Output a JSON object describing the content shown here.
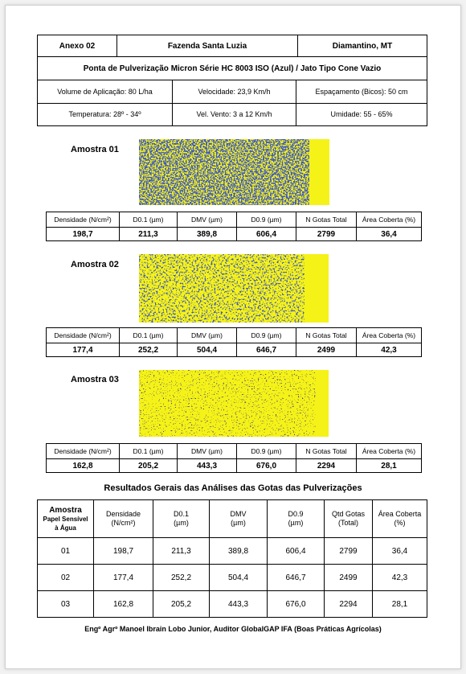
{
  "header": {
    "annex": "Anexo 02",
    "farm": "Fazenda Santa Luzia",
    "location": "Diamantino, MT",
    "nozzle": "Ponta de Pulverização Micron Série HC 8003 ISO (Azul) / Jato Tipo Cone Vazio",
    "application_volume": "Volume de Aplicação:  80 L/ha",
    "speed": "Velocidade: 23,9 Km/h",
    "spacing": "Espaçamento (Bicos): 50 cm",
    "temperature": "Temperatura: 28º - 34º",
    "wind": "Vel. Vento: 3 a 12 Km/h",
    "humidity": "Umidade: 55 - 65%"
  },
  "samples": [
    {
      "label": "Amostra 01",
      "columns": [
        "Densidade (N/cm²)",
        "D0.1 (µm)",
        "DMV (µm)",
        "D0.9 (µm)",
        "N Gotas Total",
        "Área Coberta  (%)"
      ],
      "values": [
        "198,7",
        "211,3",
        "389,8",
        "606,4",
        "2799",
        "36,4"
      ]
    },
    {
      "label": "Amostra 02",
      "columns": [
        "Densidade (N/cm²)",
        "D0.1 (µm)",
        "DMV (µm)",
        "D0.9 (µm)",
        "N Gotas Total",
        "Área Coberta  (%)"
      ],
      "values": [
        "177,4",
        "252,2",
        "504,4",
        "646,7",
        "2499",
        "42,3"
      ]
    },
    {
      "label": "Amostra 03",
      "columns": [
        "Densidade (N/cm²)",
        "D0.1 (µm)",
        "DMV (µm)",
        "D0.9 (µm)",
        "N Gotas Total",
        "Área Coberta  (%)"
      ],
      "values": [
        "162,8",
        "205,2",
        "443,3",
        "676,0",
        "2294",
        "28,1"
      ]
    }
  ],
  "summary": {
    "title": "Resultados Gerais das Análises das Gotas das Pulverizações",
    "columns": [
      [
        "Amostra",
        "Papel Sensível",
        "à Água"
      ],
      [
        "Densidade",
        "(N/cm²)"
      ],
      [
        "D0.1",
        "(µm)"
      ],
      [
        "DMV",
        "(µm)"
      ],
      [
        "D0.9",
        "(µm)"
      ],
      [
        "Qtd Gotas",
        "(Total)"
      ],
      [
        "Área Coberta",
        "(%)"
      ]
    ],
    "rows": [
      [
        "01",
        "198,7",
        "211,3",
        "389,8",
        "606,4",
        "2799",
        "36,4"
      ],
      [
        "02",
        "177,4",
        "252,2",
        "504,4",
        "646,7",
        "2499",
        "42,3"
      ],
      [
        "03",
        "162,8",
        "205,2",
        "443,3",
        "676,0",
        "2294",
        "28,1"
      ]
    ]
  },
  "footer": "Engº Agrº Manoel Ibrain Lobo Junior, Auditor GlobalGAP IFA (Boas Práticas Agrícolas)"
}
